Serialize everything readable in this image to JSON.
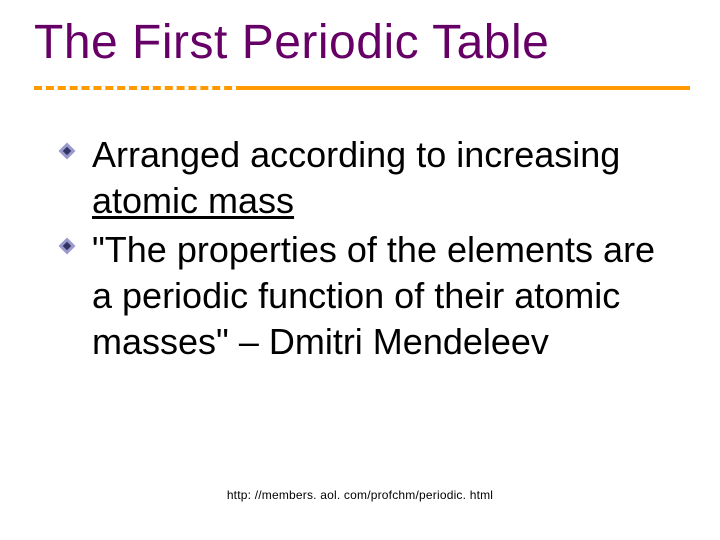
{
  "title": "The First Periodic Table",
  "title_color": "#660066",
  "title_fontsize": 48,
  "underline": {
    "dash_color": "#ff9900",
    "solid_color": "#ff9900",
    "dash_width": 210,
    "solid_start": 210,
    "solid_width": 446
  },
  "bullet": {
    "outer_color": "#9999cc",
    "inner_color": "#333366"
  },
  "body_fontsize": 36,
  "body_color": "#000000",
  "items": [
    {
      "pre": " Arranged according to increasing  ",
      "underlined": "atomic mass",
      "post": ""
    },
    {
      "pre": " \"The properties of the elements are a periodic function of their atomic masses\" – Dmitri Mendeleev",
      "underlined": "",
      "post": ""
    }
  ],
  "footer": "http: //members. aol. com/profchm/periodic. html"
}
